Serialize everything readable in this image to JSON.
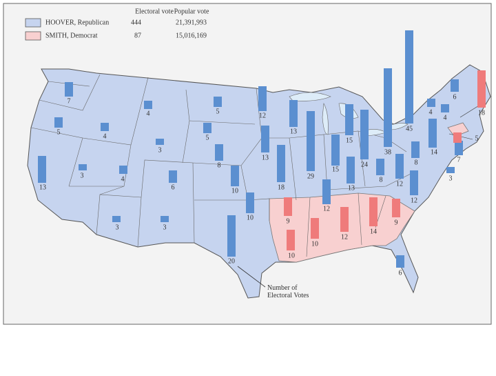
{
  "legend": {
    "headers": [
      "Electoral vote",
      "Popular vote"
    ],
    "entries": [
      {
        "name": "HOOVER, Republican",
        "region_color": "#c6d4ef",
        "bar_color": "#5b8fd0",
        "electoral_vote": 444,
        "popular_vote": "21,391,993",
        "states": [
          7,
          5,
          13,
          3,
          4,
          4,
          3,
          4,
          6,
          3,
          3,
          5,
          5,
          8,
          10,
          10,
          20,
          12,
          13,
          18,
          13,
          29,
          15,
          15,
          24,
          13,
          12,
          8,
          38,
          45,
          12,
          12,
          8,
          3,
          14,
          4,
          4,
          6,
          7,
          6
        ]
      },
      {
        "name": "SMITH, Democrat",
        "region_color": "#f8d0d0",
        "bar_color": "#ef7b7b",
        "electoral_vote": 87,
        "popular_vote": "15,016,169",
        "states": [
          18,
          5,
          9,
          10,
          10,
          12,
          14,
          9
        ]
      }
    ]
  },
  "annotation": "Number of Electoral Votes"
}
